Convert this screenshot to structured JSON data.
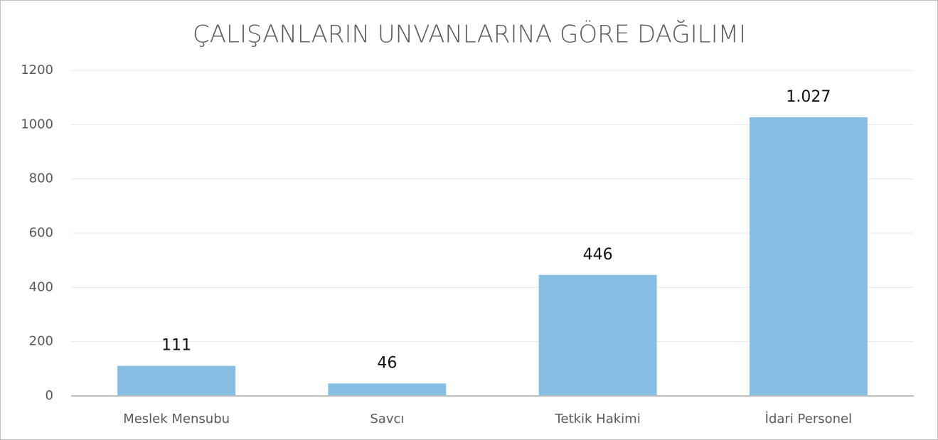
{
  "chart_data": {
    "type": "bar",
    "title": "ÇALIŞANLARIN UNVANLARINA GÖRE DAĞILIMI",
    "categories": [
      "Meslek Mensubu",
      "Savcı",
      "Tetkik Hakimi",
      "İdari Personel"
    ],
    "values": [
      111,
      46,
      446,
      1027
    ],
    "value_labels": [
      "111",
      "46",
      "446",
      "1.027"
    ],
    "color": "#85bde3",
    "ylim": [
      0,
      1200
    ],
    "yticks": [
      0,
      200,
      400,
      600,
      800,
      1000,
      1200
    ],
    "grid": true
  }
}
